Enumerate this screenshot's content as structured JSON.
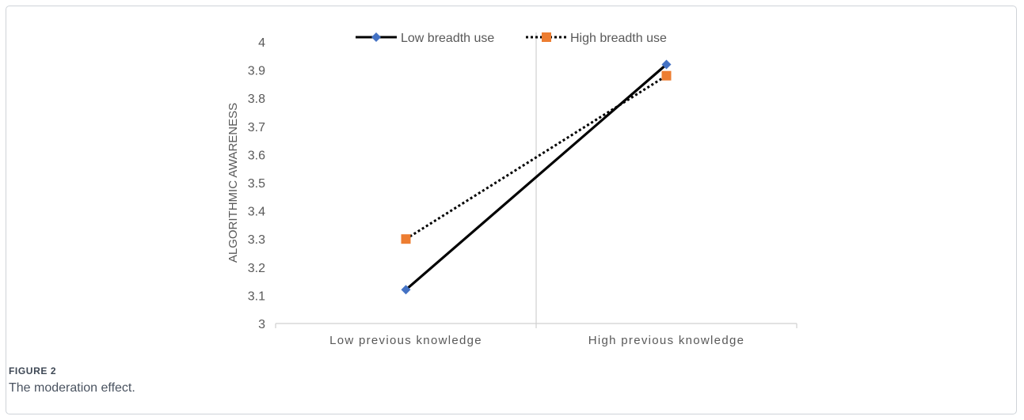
{
  "figure": {
    "label": "FIGURE 2",
    "caption": "The moderation effect."
  },
  "chart_data": {
    "type": "line",
    "title": "",
    "xlabel": "",
    "ylabel": "ALGORITHMIC AWARENESS",
    "categories": [
      "Low previous knowledge",
      "High previous knowledge"
    ],
    "ylim": [
      3,
      4
    ],
    "yticks": [
      "3",
      "3.1",
      "3.2",
      "3.3",
      "3.4",
      "3.5",
      "3.6",
      "3.7",
      "3.8",
      "3.9",
      "4"
    ],
    "grid": false,
    "legend_position": "top",
    "series": [
      {
        "name": "Low breadth use",
        "values": [
          3.12,
          3.92
        ],
        "line_style": "solid",
        "line_color": "#000000",
        "marker": "diamond",
        "marker_color": "#4472c4"
      },
      {
        "name": "High breadth use",
        "values": [
          3.3,
          3.88
        ],
        "line_style": "dotted",
        "line_color": "#000000",
        "marker": "square",
        "marker_color": "#ed7d31"
      }
    ]
  }
}
